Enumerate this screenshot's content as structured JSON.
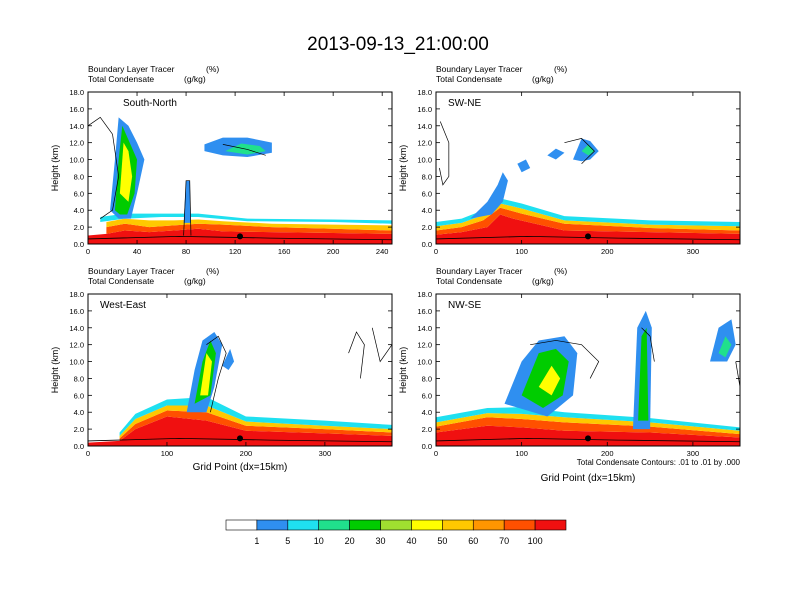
{
  "figure": {
    "title": "2013-09-13_21:00:00",
    "contour_note": "Total Condensate Contours: .01 to .01 by .000",
    "colorbar": {
      "colors": [
        "#ffffff",
        "#2f8ff0",
        "#1fe0f0",
        "#20e08c",
        "#00cc00",
        "#a0e030",
        "#ffff00",
        "#ffc800",
        "#ff9600",
        "#ff5000",
        "#f01010"
      ],
      "labels": [
        "1",
        "5",
        "10",
        "20",
        "30",
        "40",
        "50",
        "60",
        "70",
        "100"
      ]
    }
  },
  "chart_data": [
    {
      "type": "heatmap",
      "panel": "South-North",
      "header_line1": "Boundary Layer Tracer",
      "header_units1": "(%)",
      "header_line2": "Total Condensate",
      "header_units2": "(g/kg)",
      "xlabel": "",
      "ylabel": "Height (km)",
      "xlim": [
        0,
        248
      ],
      "ylim": [
        0,
        18
      ],
      "xticks": [
        "0",
        "40",
        "80",
        "120",
        "160",
        "200",
        "240"
      ],
      "yticks": [
        "0.0",
        "2.0",
        "4.0",
        "6.0",
        "8.0",
        "10.0",
        "12.0",
        "14.0",
        "16.0",
        "18.0"
      ]
    },
    {
      "type": "heatmap",
      "panel": "SW-NE",
      "header_line1": "Boundary Layer Tracer",
      "header_units1": "(%)",
      "header_line2": "Total Condensate",
      "header_units2": "(g/kg)",
      "xlabel": "",
      "ylabel": "Height (km)",
      "xlim": [
        0,
        355
      ],
      "ylim": [
        0,
        18
      ],
      "xticks": [
        "0",
        "100",
        "200",
        "300"
      ],
      "yticks": [
        "0.0",
        "2.0",
        "4.0",
        "6.0",
        "8.0",
        "10.0",
        "12.0",
        "14.0",
        "16.0",
        "18.0"
      ]
    },
    {
      "type": "heatmap",
      "panel": "West-East",
      "header_line1": "Boundary Layer Tracer",
      "header_units1": "(%)",
      "header_line2": "Total Condensate",
      "header_units2": "(g/kg)",
      "xlabel": "Grid Point (dx=15km)",
      "ylabel": "Height (km)",
      "xlim": [
        0,
        385
      ],
      "ylim": [
        0,
        18
      ],
      "xticks": [
        "0",
        "100",
        "200",
        "300"
      ],
      "yticks": [
        "0.0",
        "2.0",
        "4.0",
        "6.0",
        "8.0",
        "10.0",
        "12.0",
        "14.0",
        "16.0",
        "18.0"
      ]
    },
    {
      "type": "heatmap",
      "panel": "NW-SE",
      "header_line1": "Boundary Layer Tracer",
      "header_units1": "(%)",
      "header_line2": "Total Condensate",
      "header_units2": "(g/kg)",
      "xlabel": "Grid Point (dx=15km)",
      "ylabel": "Height (km)",
      "xlim": [
        0,
        355
      ],
      "ylim": [
        0,
        18
      ],
      "xticks": [
        "0",
        "100",
        "200",
        "300"
      ],
      "yticks": [
        "0.0",
        "2.0",
        "4.0",
        "6.0",
        "8.0",
        "10.0",
        "12.0",
        "14.0",
        "16.0",
        "18.0"
      ]
    }
  ]
}
